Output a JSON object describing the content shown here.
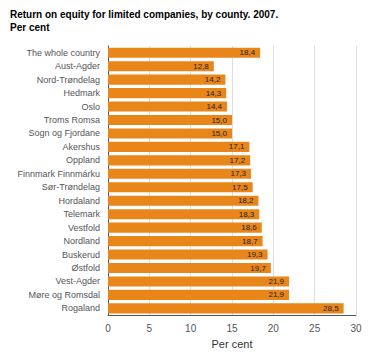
{
  "chart_data": {
    "type": "bar",
    "orientation": "horizontal",
    "title": "Return on equity for limited companies, by county. 2007.",
    "subtitle": "Per cent",
    "xlabel": "Per cent",
    "categories": [
      "The whole country",
      "Aust-Agder",
      "Nord-Trøndelag",
      "Hedmark",
      "Oslo",
      "Troms Romsa",
      "Sogn og Fjordane",
      "Akershus",
      "Oppland",
      "Finnmark Finnmárku",
      "Sør-Trøndelag",
      "Hordaland",
      "Telemark",
      "Vestfold",
      "Nordland",
      "Buskerud",
      "Østfold",
      "Vest-Agder",
      "Møre og Romsdal",
      "Rogaland"
    ],
    "values": [
      18.4,
      12.8,
      14.2,
      14.3,
      14.4,
      15.0,
      15.0,
      17.1,
      17.2,
      17.3,
      17.5,
      18.2,
      18.3,
      18.6,
      18.7,
      19.3,
      19.7,
      21.9,
      21.9,
      28.5
    ],
    "value_labels": [
      "18,4",
      "12,8",
      "14,2",
      "14,3",
      "14,4",
      "15,0",
      "15,0",
      "17,1",
      "17,2",
      "17,3",
      "17,5",
      "18,2",
      "18,3",
      "18,6",
      "18,7",
      "19,3",
      "19,7",
      "21,9",
      "21,9",
      "28,5"
    ],
    "data_labels": true,
    "color": "#E8861A",
    "xlim": [
      0,
      30
    ],
    "xticks": [
      0,
      5,
      10,
      15,
      20,
      25,
      30
    ],
    "grid": true
  }
}
